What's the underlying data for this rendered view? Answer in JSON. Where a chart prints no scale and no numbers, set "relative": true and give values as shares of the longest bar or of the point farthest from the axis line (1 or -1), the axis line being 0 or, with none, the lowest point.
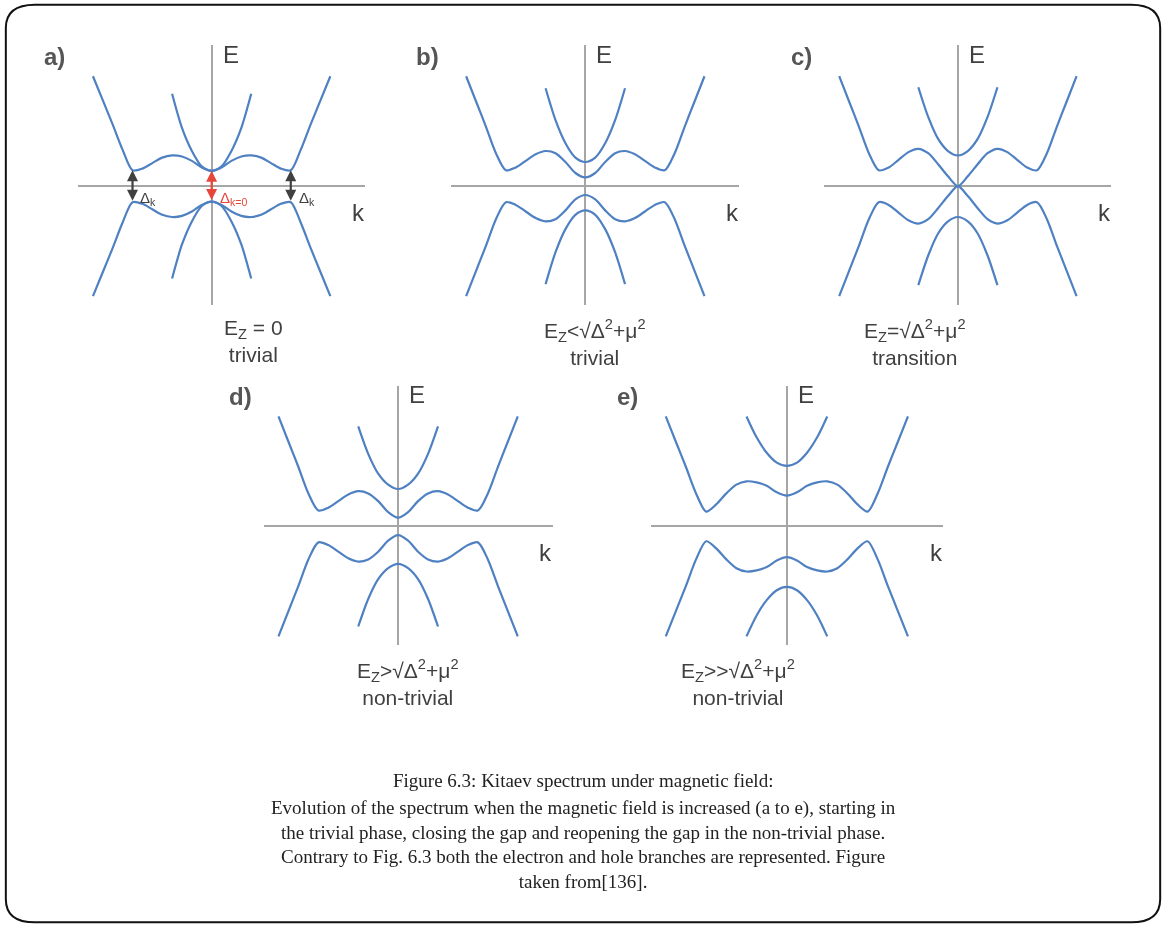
{
  "chart_data": [
    {
      "type": "line",
      "title": "a)",
      "subtitle": "E$_{Z}$ = 0\ntrivial",
      "xlabel": "k",
      "ylabel": "E",
      "relative": true,
      "categories": [
        null,
        null,
        null,
        null,
        null,
        null,
        null,
        null,
        null,
        null,
        null,
        null,
        null,
        null,
        null,
        null,
        null,
        null,
        null,
        null,
        null,
        null,
        null,
        null,
        null
      ],
      "annotations": [
        "Δ$_{k}$",
        "Δ$_{k=0}$",
        "Δ$_{k}$"
      ],
      "series": [
        {
          "color": "#4f81c2",
          "values": [
            1,
            0.78,
            0.56,
            0.33,
            0.145,
            0.16,
            0.21,
            0.26,
            0.28,
            0.27,
            0.23,
            0.17,
            0.14,
            0.17,
            0.23,
            0.27,
            0.28,
            0.26,
            0.21,
            0.16,
            0.145,
            0.33,
            0.56,
            0.78,
            1
          ]
        },
        {
          "color": "#4f81c2",
          "values": [
            null,
            null,
            null,
            null,
            null,
            null,
            null,
            null,
            0.84,
            0.53,
            0.32,
            0.18,
            0.14,
            0.18,
            0.32,
            0.53,
            0.84,
            null,
            null,
            null,
            null,
            null,
            null,
            null,
            null
          ]
        },
        {
          "color": "#4f81c2",
          "values": [
            -1,
            -0.78,
            -0.56,
            -0.33,
            -0.145,
            -0.16,
            -0.21,
            -0.26,
            -0.28,
            -0.27,
            -0.23,
            -0.17,
            -0.14,
            -0.17,
            -0.23,
            -0.27,
            -0.28,
            -0.26,
            -0.21,
            -0.16,
            -0.145,
            -0.33,
            -0.56,
            -0.78,
            -1
          ]
        },
        {
          "color": "#4f81c2",
          "values": [
            null,
            null,
            null,
            null,
            null,
            null,
            null,
            null,
            -0.84,
            -0.53,
            -0.32,
            -0.18,
            -0.14,
            -0.18,
            -0.32,
            -0.53,
            -0.84,
            null,
            null,
            null,
            null,
            null,
            null,
            null,
            null
          ]
        }
      ]
    },
    {
      "type": "line",
      "title": "b)",
      "subtitle": "E$_{Z}$<√Δ$^{2}$+μ$^{2}$\ntrivial",
      "xlabel": "k",
      "ylabel": "E",
      "relative": true,
      "categories": [
        null,
        null,
        null,
        null,
        null,
        null,
        null,
        null,
        null,
        null,
        null,
        null,
        null,
        null,
        null,
        null,
        null,
        null,
        null,
        null,
        null,
        null,
        null,
        null,
        null
      ],
      "series": [
        {
          "color": "#4f81c2",
          "values": [
            1,
            0.77,
            0.54,
            0.3,
            0.145,
            0.17,
            0.23,
            0.29,
            0.32,
            0.3,
            0.22,
            0.12,
            0.08,
            0.12,
            0.22,
            0.3,
            0.32,
            0.29,
            0.23,
            0.17,
            0.145,
            0.3,
            0.54,
            0.77,
            1
          ]
        },
        {
          "color": "#4f81c2",
          "values": [
            null,
            null,
            null,
            null,
            null,
            null,
            null,
            null,
            0.89,
            0.6,
            0.39,
            0.26,
            0.22,
            0.26,
            0.39,
            0.6,
            0.89,
            null,
            null,
            null,
            null,
            null,
            null,
            null,
            null
          ]
        },
        {
          "color": "#4f81c2",
          "values": [
            -1,
            -0.77,
            -0.54,
            -0.3,
            -0.145,
            -0.17,
            -0.23,
            -0.29,
            -0.32,
            -0.3,
            -0.22,
            -0.12,
            -0.08,
            -0.12,
            -0.22,
            -0.3,
            -0.32,
            -0.29,
            -0.23,
            -0.17,
            -0.145,
            -0.3,
            -0.54,
            -0.77,
            -1
          ]
        },
        {
          "color": "#4f81c2",
          "values": [
            null,
            null,
            null,
            null,
            null,
            null,
            null,
            null,
            -0.89,
            -0.6,
            -0.39,
            -0.26,
            -0.22,
            -0.26,
            -0.39,
            -0.6,
            -0.89,
            null,
            null,
            null,
            null,
            null,
            null,
            null,
            null
          ]
        }
      ]
    },
    {
      "type": "line",
      "title": "c)",
      "subtitle": "E$_{Z}$=√Δ$^{2}$+μ$^{2}$\ntransition",
      "xlabel": "k",
      "ylabel": "E",
      "relative": true,
      "categories": [
        null,
        null,
        null,
        null,
        null,
        null,
        null,
        null,
        null,
        null,
        null,
        null,
        null,
        null,
        null,
        null,
        null,
        null,
        null,
        null,
        null,
        null,
        null,
        null,
        null
      ],
      "series": [
        {
          "color": "#4f81c2",
          "values": [
            1,
            0.77,
            0.54,
            0.3,
            0.145,
            0.17,
            0.24,
            0.31,
            0.34,
            0.3,
            0.2,
            0.09,
            0,
            0.09,
            0.2,
            0.3,
            0.34,
            0.31,
            0.24,
            0.17,
            0.145,
            0.3,
            0.54,
            0.77,
            1
          ]
        },
        {
          "color": "#4f81c2",
          "values": [
            null,
            null,
            null,
            null,
            null,
            null,
            null,
            null,
            0.9,
            0.63,
            0.43,
            0.32,
            0.28,
            0.32,
            0.43,
            0.63,
            0.9,
            null,
            null,
            null,
            null,
            null,
            null,
            null,
            null
          ]
        },
        {
          "color": "#4f81c2",
          "values": [
            -1,
            -0.77,
            -0.54,
            -0.3,
            -0.145,
            -0.17,
            -0.24,
            -0.31,
            -0.34,
            -0.3,
            -0.2,
            -0.09,
            0,
            -0.09,
            -0.2,
            -0.3,
            -0.34,
            -0.31,
            -0.24,
            -0.17,
            -0.145,
            -0.3,
            -0.54,
            -0.77,
            -1
          ]
        },
        {
          "color": "#4f81c2",
          "values": [
            null,
            null,
            null,
            null,
            null,
            null,
            null,
            null,
            -0.9,
            -0.63,
            -0.43,
            -0.32,
            -0.28,
            -0.32,
            -0.43,
            -0.63,
            -0.9,
            null,
            null,
            null,
            null,
            null,
            null,
            null,
            null
          ]
        }
      ]
    },
    {
      "type": "line",
      "title": "d)",
      "subtitle": "E$_{Z}$>√Δ$^{2}$+μ$^{2}$\nnon-trivial",
      "xlabel": "k",
      "ylabel": "E",
      "relative": true,
      "categories": [
        null,
        null,
        null,
        null,
        null,
        null,
        null,
        null,
        null,
        null,
        null,
        null,
        null,
        null,
        null,
        null,
        null,
        null,
        null,
        null,
        null,
        null,
        null,
        null,
        null
      ],
      "series": [
        {
          "color": "#4f81c2",
          "values": [
            1,
            0.77,
            0.54,
            0.3,
            0.145,
            0.17,
            0.23,
            0.29,
            0.32,
            0.3,
            0.23,
            0.13,
            0.08,
            0.13,
            0.23,
            0.3,
            0.32,
            0.29,
            0.23,
            0.17,
            0.145,
            0.3,
            0.54,
            0.77,
            1
          ]
        },
        {
          "color": "#4f81c2",
          "values": [
            null,
            null,
            null,
            null,
            null,
            null,
            null,
            null,
            0.91,
            0.66,
            0.48,
            0.38,
            0.34,
            0.38,
            0.48,
            0.66,
            0.91,
            null,
            null,
            null,
            null,
            null,
            null,
            null,
            null
          ]
        },
        {
          "color": "#4f81c2",
          "values": [
            -1,
            -0.77,
            -0.54,
            -0.3,
            -0.145,
            -0.17,
            -0.23,
            -0.29,
            -0.32,
            -0.3,
            -0.23,
            -0.13,
            -0.08,
            -0.13,
            -0.23,
            -0.3,
            -0.32,
            -0.29,
            -0.23,
            -0.17,
            -0.145,
            -0.3,
            -0.54,
            -0.77,
            -1
          ]
        },
        {
          "color": "#4f81c2",
          "values": [
            null,
            null,
            null,
            null,
            null,
            null,
            null,
            null,
            -0.91,
            -0.66,
            -0.48,
            -0.38,
            -0.34,
            -0.38,
            -0.48,
            -0.66,
            -0.91,
            null,
            null,
            null,
            null,
            null,
            null,
            null,
            null
          ]
        }
      ]
    },
    {
      "type": "line",
      "title": "e)",
      "subtitle": "E$_{Z}$>>√Δ$^{2}$+μ$^{2}$\nnon-trivial",
      "xlabel": "k",
      "ylabel": "E",
      "relative": true,
      "categories": [
        null,
        null,
        null,
        null,
        null,
        null,
        null,
        null,
        null,
        null,
        null,
        null,
        null,
        null,
        null,
        null,
        null,
        null,
        null,
        null,
        null,
        null,
        null,
        null,
        null
      ],
      "series": [
        {
          "color": "#4f81c2",
          "values": [
            1,
            0.77,
            0.54,
            0.3,
            0.135,
            0.2,
            0.3,
            0.38,
            0.41,
            0.4,
            0.37,
            0.31,
            0.28,
            0.31,
            0.37,
            0.4,
            0.41,
            0.38,
            0.3,
            0.2,
            0.135,
            0.3,
            0.54,
            0.77,
            1
          ]
        },
        {
          "color": "#4f81c2",
          "values": [
            null,
            null,
            null,
            null,
            null,
            null,
            null,
            null,
            1,
            0.81,
            0.67,
            0.58,
            0.55,
            0.58,
            0.67,
            0.81,
            1,
            null,
            null,
            null,
            null,
            null,
            null,
            null,
            null
          ]
        },
        {
          "color": "#4f81c2",
          "values": [
            -1,
            -0.77,
            -0.54,
            -0.3,
            -0.135,
            -0.2,
            -0.3,
            -0.38,
            -0.41,
            -0.4,
            -0.37,
            -0.31,
            -0.28,
            -0.31,
            -0.37,
            -0.4,
            -0.41,
            -0.38,
            -0.3,
            -0.2,
            -0.135,
            -0.3,
            -0.54,
            -0.77,
            -1
          ]
        },
        {
          "color": "#4f81c2",
          "values": [
            null,
            null,
            null,
            null,
            null,
            null,
            null,
            null,
            -1,
            -0.81,
            -0.67,
            -0.58,
            -0.55,
            -0.58,
            -0.67,
            -0.81,
            -1,
            null,
            null,
            null,
            null,
            null,
            null,
            null,
            null
          ]
        }
      ]
    },
    {
      "type": "other",
      "title": "Figure 6.3: Kitaev spectrum under magnetic field:",
      "annotations": [
        "Evolution of the spectrum when the magnetic field is increased (a to e), starting in the trivial phase, closing the gap and reopening the gap in the non-trivial phase. Contrary to Fig. 6.3 both the electron and hole branches are represented. Figure taken from[136]."
      ]
    }
  ]
}
